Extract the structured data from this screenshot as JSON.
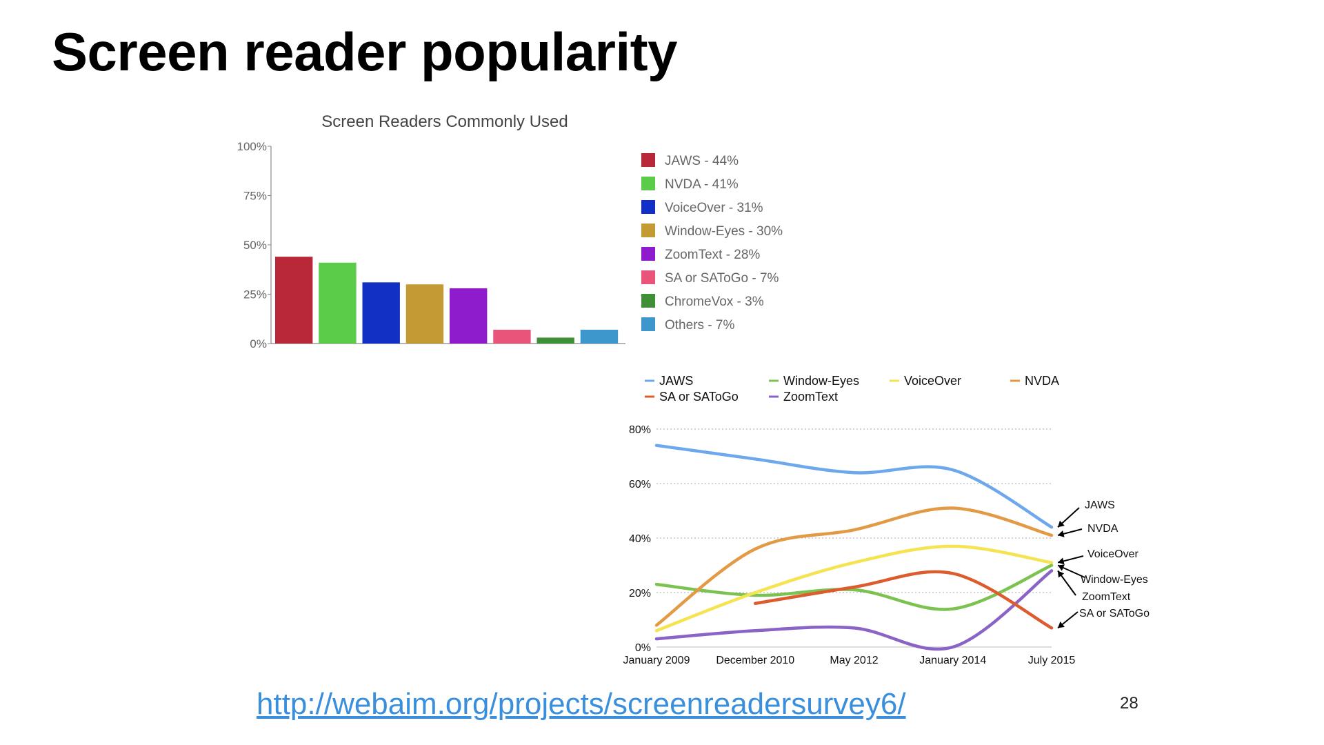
{
  "slide": {
    "title": "Screen reader popularity",
    "source_link": "http://webaim.org/projects/screenreadersurvey6/",
    "page_number": "28"
  },
  "chart_data": [
    {
      "type": "bar",
      "title": "Screen Readers Commonly Used",
      "categories": [
        "JAWS",
        "NVDA",
        "VoiceOver",
        "Window-Eyes",
        "ZoomText",
        "SA or SAToGo",
        "ChromeVox",
        "Others"
      ],
      "values": [
        44,
        41,
        31,
        30,
        28,
        7,
        3,
        7
      ],
      "colors": [
        "#b82838",
        "#5bcb4a",
        "#1230c4",
        "#c49a33",
        "#8e1ccc",
        "#e9557a",
        "#3f8f37",
        "#3e97cc"
      ],
      "legend": [
        "JAWS - 44%",
        "NVDA - 41%",
        "VoiceOver - 31%",
        "Window-Eyes - 30%",
        "ZoomText - 28%",
        "SA or SAToGo - 7%",
        "ChromeVox - 3%",
        "Others - 7%"
      ],
      "yticks": [
        "0%",
        "25%",
        "50%",
        "75%",
        "100%"
      ],
      "ylim": [
        0,
        100
      ],
      "legend_position": "right",
      "grid": false
    },
    {
      "type": "line",
      "x": [
        "January 2009",
        "December 2010",
        "May 2012",
        "January 2014",
        "July 2015"
      ],
      "yticks": [
        "0%",
        "20%",
        "40%",
        "60%",
        "80%"
      ],
      "ylim": [
        0,
        80
      ],
      "grid": true,
      "legend_position": "top",
      "series": [
        {
          "name": "JAWS",
          "color": "#6ea8ec",
          "values": [
            74,
            69,
            64,
            65,
            44
          ],
          "end_label": "JAWS"
        },
        {
          "name": "Window-Eyes",
          "color": "#7cc251",
          "values": [
            23,
            19,
            21,
            14,
            30
          ],
          "end_label": "Window-Eyes"
        },
        {
          "name": "VoiceOver",
          "color": "#f6e352",
          "values": [
            6,
            20,
            31,
            37,
            31
          ],
          "end_label": "VoiceOver"
        },
        {
          "name": "NVDA",
          "color": "#e39a45",
          "values": [
            8,
            36,
            43,
            51,
            41
          ],
          "end_label": "NVDA"
        },
        {
          "name": "SA or SAToGo",
          "color": "#dc5c2e",
          "values": [
            null,
            16,
            22,
            27,
            7
          ],
          "end_label": "SA or SAToGo"
        },
        {
          "name": "ZoomText",
          "color": "#8a63c7",
          "values": [
            3,
            6,
            7,
            0,
            28
          ],
          "end_label": "ZoomText"
        }
      ]
    }
  ]
}
